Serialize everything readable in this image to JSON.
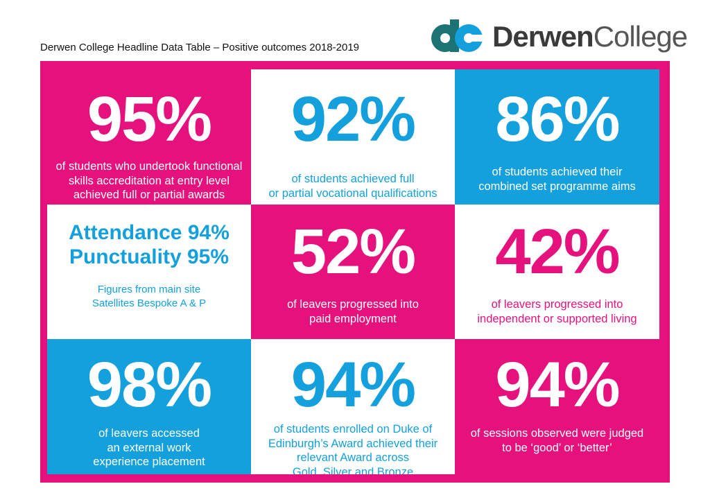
{
  "header": {
    "title": "Derwen College Headline Data Table – Positive outcomes 2018-2019",
    "logo_text_bold": "Derwen",
    "logo_text_light": "College"
  },
  "colors": {
    "pink": "#e5127d",
    "blue": "#13a0dc",
    "teal": "#1d7273"
  },
  "cells": {
    "functional_skills": {
      "value": "95%",
      "line1": "of students who undertook functional",
      "line2": "skills accreditation at entry level",
      "line3": "achieved full or partial awards"
    },
    "vocational": {
      "value": "92%",
      "line1": "of students achieved full",
      "line2": "or partial vocational qualifications"
    },
    "programme_aims": {
      "value": "86%",
      "line1": "of students achieved their",
      "line2": "combined set programme aims"
    },
    "attendance": {
      "attendance": "Attendance 94%",
      "punctuality": "Punctuality 95%",
      "note1": "Figures from main site",
      "note2": "Satellites Bespoke A & P"
    },
    "paid_employment": {
      "value": "52%",
      "line1": "of leavers progressed into",
      "line2": "paid employment"
    },
    "independent_living": {
      "value": "42%",
      "line1": "of leavers progressed into",
      "line2": "independent or supported living"
    },
    "work_experience": {
      "value": "98%",
      "line1": "of leavers accessed",
      "line2": "an external work",
      "line3": "experience placement"
    },
    "duke_of_edinburgh": {
      "value": "94%",
      "line1": "of students enrolled on Duke of",
      "line2": "Edinburgh’s Award achieved their",
      "line3": "relevant Award across",
      "line4": "Gold, Silver and Bronze"
    },
    "sessions_observed": {
      "value": "94%",
      "line1": "of sessions observed were judged",
      "line2": "to be ‘good’ or ‘better’"
    }
  }
}
